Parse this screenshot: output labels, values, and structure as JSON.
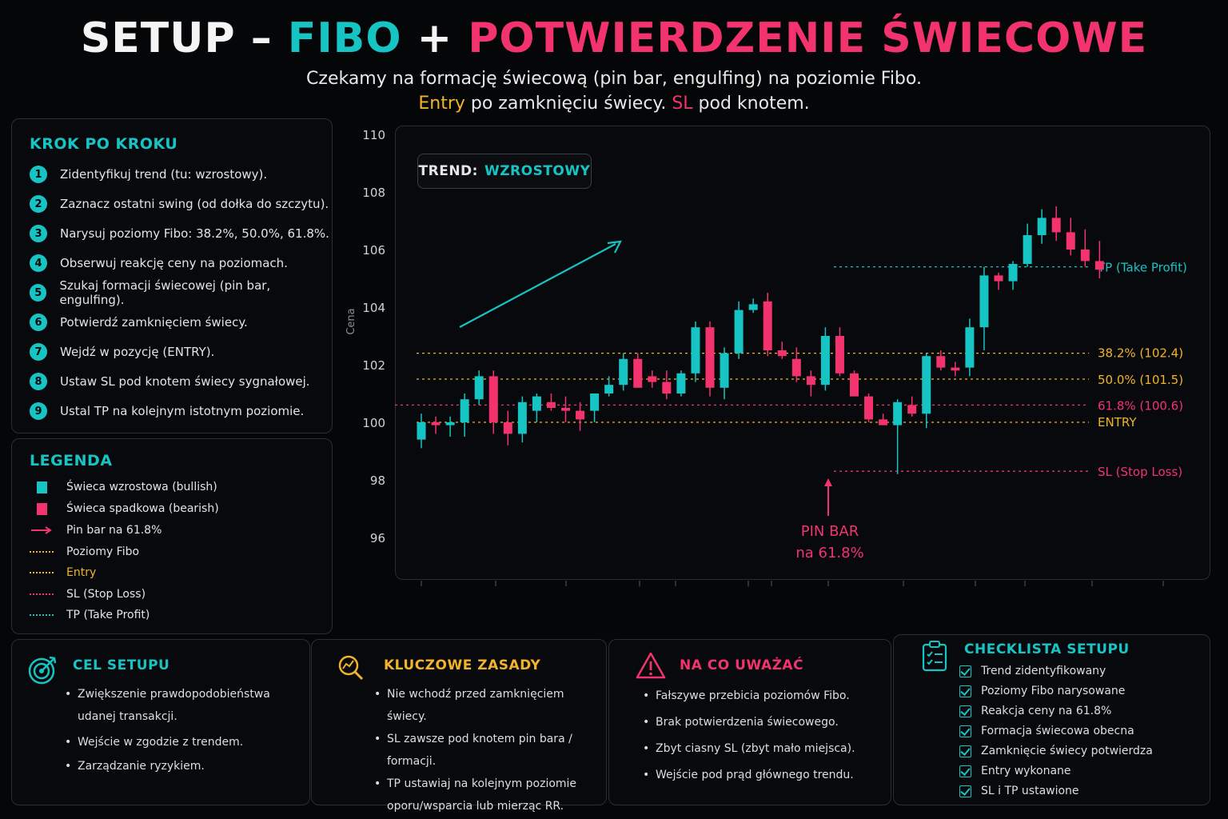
{
  "title": {
    "part1": "SETUP – ",
    "part2": "FIBO",
    "part3": " + ",
    "part4": "POTWIERDZENIE ŚWIECOWE"
  },
  "subtitle": {
    "line1": "Czekamy na formację świecową (pin bar, engulfing) na poziomie Fibo.",
    "line2_entry": "Entry",
    "line2_mid": " po zamknięciu świecy. ",
    "line2_sl": "SL",
    "line2_end": " pod knotem."
  },
  "steps": {
    "title": "KROK PO KROKU",
    "items": [
      {
        "num": "1",
        "text": "Zidentyfikuj trend (tu: wzrostowy)."
      },
      {
        "num": "2",
        "text": "Zaznacz ostatni swing (od dołka do szczytu)."
      },
      {
        "num": "3",
        "text": "Narysuj poziomy Fibo: 38.2%, 50.0%, 61.8%."
      },
      {
        "num": "4",
        "text": "Obserwuj reakcję ceny na poziomach."
      },
      {
        "num": "5",
        "text": "Szukaj formacji świecowej (pin bar, engulfing)."
      },
      {
        "num": "6",
        "text": "Potwierdź zamknięciem świecy."
      },
      {
        "num": "7",
        "text": "Wejdź w pozycję (ENTRY)."
      },
      {
        "num": "8",
        "text": "Ustaw SL pod knotem świecy sygnałowej."
      },
      {
        "num": "9",
        "text": "Ustal TP na kolejnym istotnym poziomie."
      }
    ]
  },
  "legend": {
    "title": "LEGENDA",
    "items": [
      {
        "kind": "square",
        "color": "#17c4c4",
        "text": "Świeca wzrostowa (bullish)"
      },
      {
        "kind": "square",
        "color": "#f2336e",
        "text": "Świeca spadkowa (bearish)"
      },
      {
        "kind": "arrow",
        "color": "#f2336e",
        "text": "Pin bar na 61.8%"
      },
      {
        "kind": "dots",
        "color": "#f2b32a",
        "text": "Poziomy Fibo"
      },
      {
        "kind": "dots",
        "color": "#f2b32a",
        "text": "Entry"
      },
      {
        "kind": "dots",
        "color": "#f2336e",
        "text": "SL (Stop Loss)"
      },
      {
        "kind": "dots",
        "color": "#17c4c4",
        "text": "TP (Take Profit)"
      }
    ]
  },
  "trend_box": {
    "label": "TREND:",
    "value": "WZROSTOWY"
  },
  "chart_data": {
    "type": "candlestick",
    "ylabel": "Cena",
    "ylim": [
      95,
      110
    ],
    "yticks": [
      96,
      98,
      100,
      102,
      104,
      106,
      108,
      110
    ],
    "candles": [
      {
        "o": 99.4,
        "h": 100.3,
        "l": 99.1,
        "c": 100.0
      },
      {
        "o": 100.0,
        "h": 100.2,
        "l": 99.6,
        "c": 99.9
      },
      {
        "o": 99.9,
        "h": 100.2,
        "l": 99.5,
        "c": 100.0
      },
      {
        "o": 100.0,
        "h": 101.0,
        "l": 99.5,
        "c": 100.8
      },
      {
        "o": 100.8,
        "h": 101.8,
        "l": 100.6,
        "c": 101.6
      },
      {
        "o": 101.6,
        "h": 101.8,
        "l": 99.6,
        "c": 100.0
      },
      {
        "o": 100.0,
        "h": 100.4,
        "l": 99.2,
        "c": 99.6
      },
      {
        "o": 99.6,
        "h": 100.9,
        "l": 99.3,
        "c": 100.7
      },
      {
        "o": 100.4,
        "h": 101.0,
        "l": 100.0,
        "c": 100.9
      },
      {
        "o": 100.7,
        "h": 101.0,
        "l": 100.4,
        "c": 100.5
      },
      {
        "o": 100.5,
        "h": 100.9,
        "l": 100.0,
        "c": 100.4
      },
      {
        "o": 100.4,
        "h": 100.7,
        "l": 99.7,
        "c": 100.1
      },
      {
        "o": 100.4,
        "h": 101.0,
        "l": 100.0,
        "c": 101.0
      },
      {
        "o": 101.0,
        "h": 101.6,
        "l": 100.9,
        "c": 101.3
      },
      {
        "o": 101.3,
        "h": 102.4,
        "l": 101.1,
        "c": 102.2
      },
      {
        "o": 102.2,
        "h": 102.4,
        "l": 101.2,
        "c": 101.2
      },
      {
        "o": 101.6,
        "h": 101.8,
        "l": 101.2,
        "c": 101.4
      },
      {
        "o": 101.4,
        "h": 101.8,
        "l": 100.8,
        "c": 101.0
      },
      {
        "o": 101.0,
        "h": 101.8,
        "l": 100.9,
        "c": 101.7
      },
      {
        "o": 101.7,
        "h": 103.5,
        "l": 101.4,
        "c": 103.3
      },
      {
        "o": 103.3,
        "h": 103.5,
        "l": 100.9,
        "c": 101.2
      },
      {
        "o": 101.2,
        "h": 102.6,
        "l": 100.8,
        "c": 102.4
      },
      {
        "o": 102.4,
        "h": 104.2,
        "l": 102.2,
        "c": 103.9
      },
      {
        "o": 103.9,
        "h": 104.3,
        "l": 103.8,
        "c": 104.1
      },
      {
        "o": 104.2,
        "h": 104.5,
        "l": 102.3,
        "c": 102.5
      },
      {
        "o": 102.5,
        "h": 102.8,
        "l": 102.2,
        "c": 102.3
      },
      {
        "o": 102.2,
        "h": 102.6,
        "l": 101.4,
        "c": 101.6
      },
      {
        "o": 101.6,
        "h": 101.8,
        "l": 100.9,
        "c": 101.3
      },
      {
        "o": 101.3,
        "h": 103.3,
        "l": 101.1,
        "c": 103.0
      },
      {
        "o": 103.0,
        "h": 103.3,
        "l": 101.6,
        "c": 101.7
      },
      {
        "o": 101.7,
        "h": 101.8,
        "l": 100.9,
        "c": 100.9
      },
      {
        "o": 100.9,
        "h": 101.0,
        "l": 100.0,
        "c": 100.1
      },
      {
        "o": 100.1,
        "h": 100.3,
        "l": 99.9,
        "c": 99.9
      },
      {
        "o": 99.9,
        "h": 100.8,
        "l": 98.2,
        "c": 100.7
      },
      {
        "o": 100.6,
        "h": 100.9,
        "l": 100.2,
        "c": 100.3
      },
      {
        "o": 100.3,
        "h": 102.4,
        "l": 99.8,
        "c": 102.3
      },
      {
        "o": 102.3,
        "h": 102.5,
        "l": 101.8,
        "c": 101.9
      },
      {
        "o": 101.9,
        "h": 102.1,
        "l": 101.6,
        "c": 101.8
      },
      {
        "o": 101.9,
        "h": 103.6,
        "l": 101.6,
        "c": 103.3
      },
      {
        "o": 103.3,
        "h": 105.4,
        "l": 102.5,
        "c": 105.1
      },
      {
        "o": 105.1,
        "h": 105.2,
        "l": 104.6,
        "c": 104.9
      },
      {
        "o": 104.9,
        "h": 105.6,
        "l": 104.6,
        "c": 105.5
      },
      {
        "o": 105.5,
        "h": 106.9,
        "l": 105.4,
        "c": 106.5
      },
      {
        "o": 106.5,
        "h": 107.4,
        "l": 106.2,
        "c": 107.1
      },
      {
        "o": 107.1,
        "h": 107.5,
        "l": 106.3,
        "c": 106.6
      },
      {
        "o": 106.6,
        "h": 107.1,
        "l": 105.8,
        "c": 106.0
      },
      {
        "o": 106.0,
        "h": 106.7,
        "l": 105.4,
        "c": 105.6
      },
      {
        "o": 105.6,
        "h": 106.3,
        "l": 105.0,
        "c": 105.3
      }
    ],
    "levels": [
      {
        "name": "tp",
        "label": "TP (Take Profit)",
        "value": 105.4,
        "color": "#17c4c4"
      },
      {
        "name": "fib-382",
        "label": "38.2% (102.4)",
        "value": 102.4,
        "color": "#f2b32a"
      },
      {
        "name": "fib-500",
        "label": "50.0% (101.5)",
        "value": 101.5,
        "color": "#f2b32a"
      },
      {
        "name": "fib-618",
        "label": "61.8% (100.6)",
        "value": 100.6,
        "color": "#f2336e"
      },
      {
        "name": "entry",
        "label": "ENTRY",
        "value": 100.0,
        "color": "#f2b32a"
      },
      {
        "name": "sl",
        "label": "SL (Stop Loss)",
        "value": 98.3,
        "color": "#f2336e"
      }
    ],
    "annotation": {
      "line1": "PIN BAR",
      "line2": "na 61.8%"
    }
  },
  "cel": {
    "title": "CEL SETUPU",
    "items": [
      "Zwiększenie prawdopodobieństwa udanej transakcji.",
      "Wejście w zgodzie z trendem.",
      "Zarządzanie ryzykiem."
    ]
  },
  "zasady": {
    "title": "KLUCZOWE ZASADY",
    "items": [
      "Nie wchodź przed zamknięciem świecy.",
      "SL zawsze pod knotem pin bara / formacji.",
      "TP ustawiaj na kolejnym poziomie oporu/wsparcia lub mierząc RR."
    ]
  },
  "uwaga": {
    "title": "NA CO UWAŻAĆ",
    "items": [
      "Fałszywe przebicia poziomów Fibo.",
      "Brak potwierdzenia świecowego.",
      "Zbyt ciasny SL (zbyt mało miejsca).",
      "Wejście pod prąd głównego trendu."
    ]
  },
  "checklist": {
    "title": "CHECKLISTA SETUPU",
    "items": [
      "Trend zidentyfikowany",
      "Poziomy Fibo narysowane",
      "Reakcja ceny na 61.8%",
      "Formacja świecowa obecna",
      "Zamknięcie świecy potwierdza",
      "Entry wykonane",
      "SL i TP ustawione"
    ]
  },
  "colors": {
    "bull": "#17c4c4",
    "bear": "#f2336e",
    "fibo": "#f2b32a"
  }
}
